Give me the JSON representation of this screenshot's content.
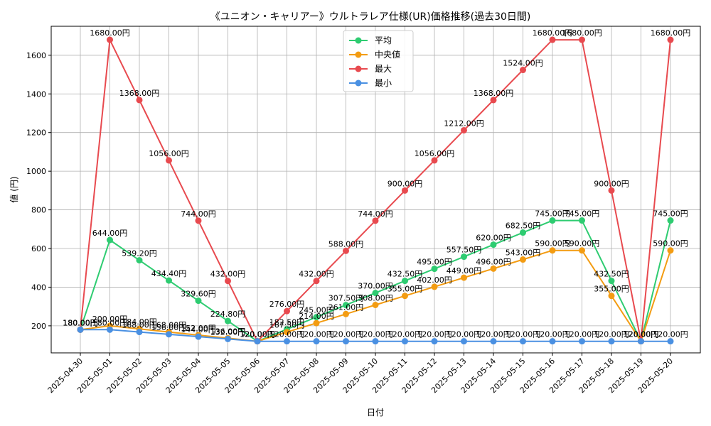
{
  "chart_data": {
    "type": "line",
    "title": "《ユニオン・キャリアー》ウルトラレア仕様(UR)価格推移(過去30日間)",
    "xlabel": "日付",
    "ylabel": "値 (円)",
    "ylim": [
      60,
      1750
    ],
    "y_ticks": [
      200,
      400,
      600,
      800,
      1000,
      1200,
      1400,
      1600
    ],
    "grid": true,
    "legend_position": "top-center",
    "label_suffix": "円",
    "categories": [
      "2025-04-30",
      "2025-05-01",
      "2025-05-02",
      "2025-05-03",
      "2025-05-04",
      "2025-05-05",
      "2025-05-06",
      "2025-05-07",
      "2025-05-08",
      "2025-05-09",
      "2025-05-10",
      "2025-05-11",
      "2025-05-12",
      "2025-05-13",
      "2025-05-14",
      "2025-05-15",
      "2025-05-16",
      "2025-05-17",
      "2025-05-18",
      "2025-05-19",
      "2025-05-20"
    ],
    "series": [
      {
        "name": "平均",
        "color": "#2ecc71",
        "values": [
          180,
          644,
          539.2,
          434.4,
          329.6,
          224.8,
          120,
          182.5,
          245,
          307.5,
          370,
          432.5,
          495,
          557.5,
          620,
          682.5,
          745,
          745,
          432.5,
          120,
          745
        ]
      },
      {
        "name": "中央値",
        "color": "#f39c12",
        "values": [
          180,
          200,
          184,
          168,
          152,
          136,
          120,
          167.5,
          214,
          261,
          308,
          355,
          402,
          449,
          496,
          543,
          590,
          590,
          355,
          120,
          590
        ]
      },
      {
        "name": "最大",
        "color": "#e84a4f",
        "values": [
          180,
          1680,
          1368,
          1056,
          744,
          432,
          120,
          276,
          432,
          588,
          744,
          900,
          1056,
          1212,
          1368,
          1524,
          1680,
          1680,
          900,
          120,
          1680
        ]
      },
      {
        "name": "最小",
        "color": "#4a90e2",
        "values": [
          180,
          180,
          168,
          156,
          144,
          132,
          120,
          120,
          120,
          120,
          120,
          120,
          120,
          120,
          120,
          120,
          120,
          120,
          120,
          120,
          120
        ]
      }
    ]
  }
}
